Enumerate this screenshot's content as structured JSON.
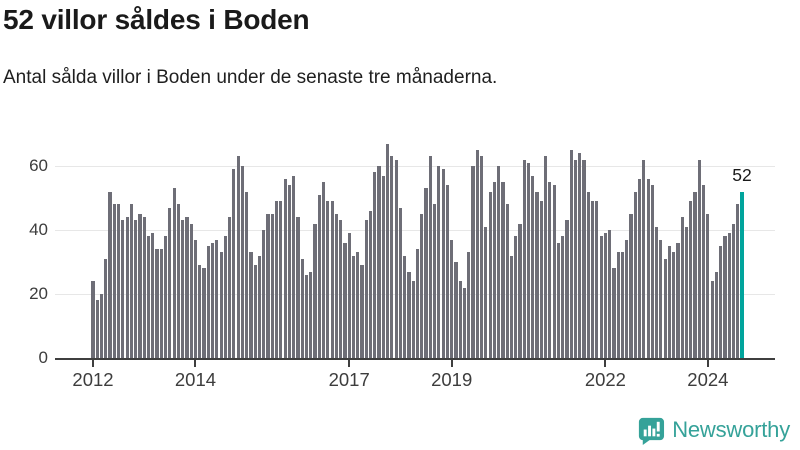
{
  "header": {
    "title": "52 villor såldes i Boden",
    "subtitle": "Antal sålda villor i Boden under de senaste tre månaderna."
  },
  "chart_data": {
    "type": "bar",
    "title": "52 villor såldes i Boden",
    "subtitle": "Antal sålda villor i Boden under de senaste tre månaderna.",
    "unit": "sålda villor (rullande tremånadersperiod)",
    "frequency": "monthly",
    "start": "2012-01",
    "values": [
      24,
      18,
      20,
      31,
      52,
      48,
      48,
      43,
      44,
      48,
      43,
      45,
      44,
      38,
      39,
      34,
      34,
      38,
      47,
      53,
      48,
      43,
      44,
      42,
      37,
      29,
      28,
      35,
      36,
      37,
      33,
      38,
      44,
      59,
      63,
      60,
      52,
      33,
      29,
      32,
      40,
      45,
      45,
      49,
      49,
      56,
      54,
      57,
      44,
      31,
      26,
      27,
      42,
      51,
      55,
      49,
      49,
      45,
      43,
      36,
      39,
      32,
      33,
      29,
      43,
      46,
      58,
      60,
      57,
      67,
      63,
      62,
      47,
      32,
      27,
      24,
      34,
      45,
      53,
      63,
      48,
      60,
      59,
      54,
      37,
      30,
      24,
      22,
      33,
      60,
      65,
      63,
      41,
      52,
      55,
      60,
      55,
      48,
      32,
      38,
      42,
      62,
      61,
      57,
      52,
      49,
      63,
      55,
      54,
      36,
      38,
      43,
      65,
      62,
      64,
      62,
      52,
      49,
      49,
      38,
      39,
      40,
      28,
      33,
      33,
      37,
      45,
      52,
      56,
      62,
      56,
      54,
      41,
      37,
      31,
      35,
      33,
      36,
      44,
      41,
      49,
      52,
      62,
      54,
      45,
      24,
      27,
      35,
      38,
      39,
      42,
      48,
      52
    ],
    "x_ticks": [
      {
        "label": "2012",
        "month_index": 0
      },
      {
        "label": "2014",
        "month_index": 24
      },
      {
        "label": "2017",
        "month_index": 60
      },
      {
        "label": "2019",
        "month_index": 84
      },
      {
        "label": "2022",
        "month_index": 120
      },
      {
        "label": "2024",
        "month_index": 144
      }
    ],
    "y_ticks": [
      0,
      20,
      40,
      60
    ],
    "ylim": [
      0,
      68
    ],
    "grid": true,
    "legend": "none",
    "bar_color": "#6e6e77",
    "highlight": {
      "index_from_end": 0,
      "value": 52,
      "label": "52",
      "color": "#00a49c"
    }
  },
  "footer": {
    "brand": "Newsworthy",
    "brand_color": "#35a299",
    "logo_icon": "bar-chart-speech-bubble-icon"
  }
}
